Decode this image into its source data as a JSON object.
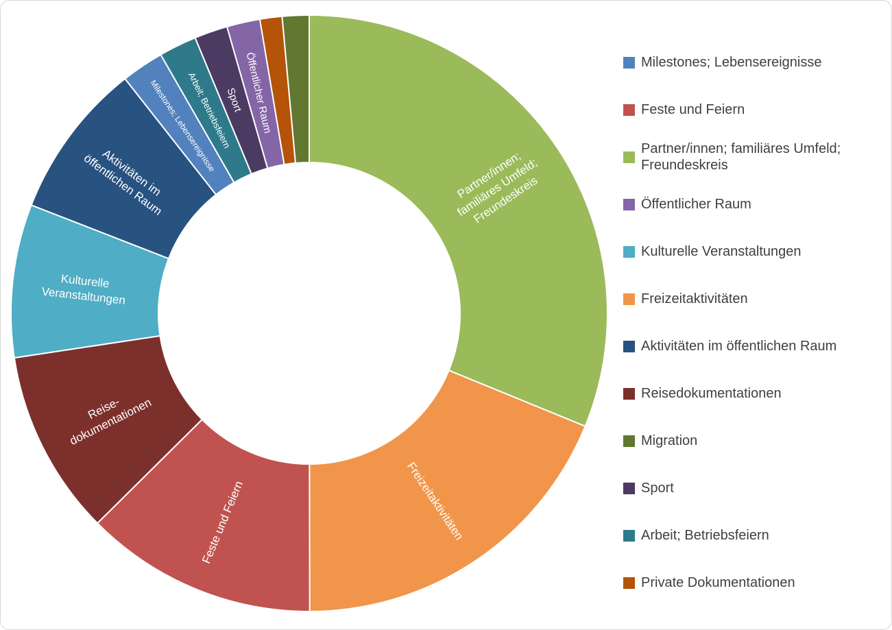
{
  "canvas": {
    "background_color": "#ffffff",
    "border_color": "#d6d6d6"
  },
  "chart_data": {
    "type": "pie",
    "subtype": "donut",
    "title": "",
    "legend_position": "right",
    "units": "percent_of_total",
    "start_angle_deg": 0,
    "direction": "clockwise",
    "inner_radius_ratio": 0.506,
    "gridlines": false,
    "series": [
      {
        "name": "Partner/innen; familiäres Umfeld; Freundeskreis",
        "value": 31.2,
        "color": "#9bba59",
        "slice_label_lines": [
          "Partner/innen;",
          "familiäres Umfeld;",
          "Freundeskreis"
        ]
      },
      {
        "name": "Freizeitaktivitäten",
        "value": 18.8,
        "color": "#f0954a",
        "slice_label_lines": [
          "Freizeitaktivitäten"
        ]
      },
      {
        "name": "Feste und Feiern",
        "value": 12.6,
        "color": "#c0534f",
        "slice_label_lines": [
          "Feste und Feiern"
        ]
      },
      {
        "name": "Reisedokumentationen",
        "value": 10.05,
        "color": "#7c302c",
        "slice_label_lines": [
          "Reise-",
          "dokumentationen"
        ]
      },
      {
        "name": "Kulturelle Veranstaltungen",
        "value": 8.3,
        "color": "#4fadc6",
        "slice_label_lines": [
          "Kulturelle",
          "Veranstaltungen"
        ]
      },
      {
        "name": "Aktivitäten im öffentlichen Raum",
        "value": 8.5,
        "color": "#285280",
        "slice_label_lines": [
          "Aktivitäten im",
          "öffentlichen Raum"
        ]
      },
      {
        "name": "Milestones; Lebensereignisse",
        "value": 2.3,
        "color": "#5282be",
        "slice_label_lines": [
          "Milestones; Lebensereignisse"
        ]
      },
      {
        "name": "Arbeit; Betriebsfeiern",
        "value": 2.05,
        "color": "#2e7a8b",
        "slice_label_lines": [
          "Arbeit; Betriebsfeiern"
        ]
      },
      {
        "name": "Sport",
        "value": 1.8,
        "color": "#4b3a61",
        "slice_label_lines": [
          "Sport"
        ]
      },
      {
        "name": "Öffentlicher Raum",
        "value": 1.8,
        "color": "#8466a7",
        "slice_label_lines": [
          "Öffentlicher Raum"
        ]
      },
      {
        "name": "Private Dokumentationen",
        "value": 1.2,
        "color": "#b55309",
        "slice_label_lines": []
      },
      {
        "name": "Migration",
        "value": 1.45,
        "color": "#62772f",
        "slice_label_lines": []
      }
    ],
    "legend_item_order": [
      6,
      2,
      0,
      9,
      4,
      1,
      5,
      3,
      11,
      8,
      7,
      10
    ],
    "slice_label_color": "#ffffff"
  }
}
